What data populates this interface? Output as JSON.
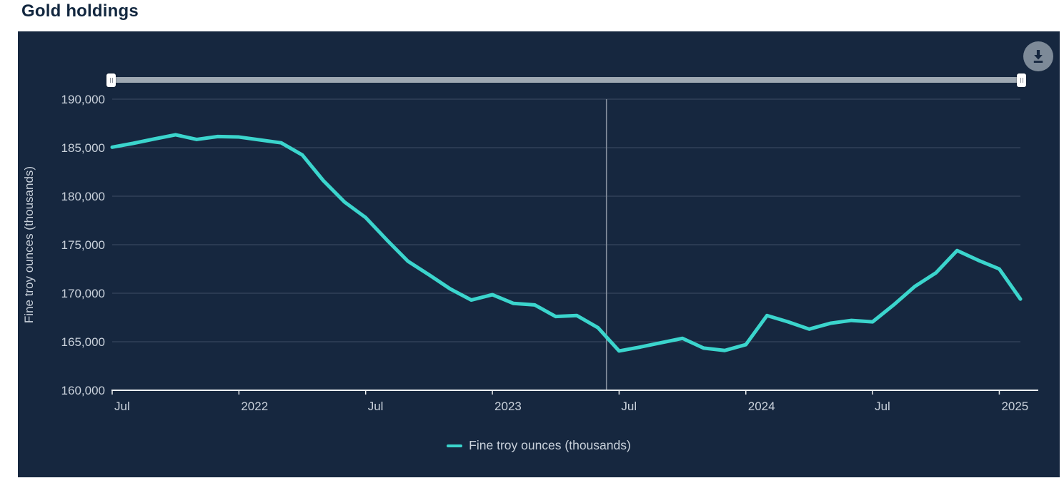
{
  "page": {
    "title": "Gold holdings"
  },
  "toolbar": {
    "download_icon": "download-arrow-with-tray"
  },
  "range_slider": {
    "selected_min_fraction": 0,
    "selected_max_fraction": 1,
    "left_handle_icon": "grip-lines",
    "right_handle_icon": "grip-lines"
  },
  "colors": {
    "panel_background": "#16273F",
    "series_line": "#3BD5CD",
    "gridline": "#3E4E66",
    "axis_text": "#C9D1DB",
    "axis_line": "#EDF0F2",
    "reference_line": "#8892A0",
    "title_text": "#12273F",
    "slider_track": "#9FA9B3",
    "download_button": "#7D8A98"
  },
  "chart_data": {
    "type": "line",
    "title": "Gold holdings",
    "xlabel": "",
    "ylabel": "Fine troy ounces (thousands)",
    "ylim": [
      160000,
      190000
    ],
    "y_ticks": [
      160000,
      165000,
      170000,
      175000,
      180000,
      185000,
      190000
    ],
    "grid": "horizontal",
    "legend_position": "bottom",
    "x": [
      "2021-07",
      "2021-08",
      "2021-09",
      "2021-10",
      "2021-11",
      "2021-12",
      "2022-01",
      "2022-02",
      "2022-03",
      "2022-04",
      "2022-05",
      "2022-06",
      "2022-07",
      "2022-08",
      "2022-09",
      "2022-10",
      "2022-11",
      "2022-12",
      "2023-01",
      "2023-02",
      "2023-03",
      "2023-04",
      "2023-05",
      "2023-06",
      "2023-07",
      "2023-08",
      "2023-09",
      "2023-10",
      "2023-11",
      "2023-12",
      "2024-01",
      "2024-02",
      "2024-03",
      "2024-04",
      "2024-05",
      "2024-06",
      "2024-07",
      "2024-08",
      "2024-09",
      "2024-10",
      "2024-11",
      "2024-12",
      "2025-01",
      "2025-02"
    ],
    "x_tick_indices": [
      0,
      6,
      12,
      18,
      24,
      30,
      36,
      42
    ],
    "x_tick_labels": [
      "Jul",
      "2022",
      "Jul",
      "2023",
      "Jul",
      "2024",
      "Jul",
      "2025"
    ],
    "series": [
      {
        "name": "Fine troy ounces (thousands)",
        "color": "#3BD5CD",
        "values": [
          185050,
          185450,
          185900,
          186330,
          185850,
          186150,
          186100,
          185800,
          185500,
          184250,
          181600,
          179400,
          177800,
          175500,
          173300,
          171900,
          170450,
          169300,
          169850,
          168950,
          168800,
          167600,
          167700,
          166450,
          164050,
          164450,
          164900,
          165350,
          164350,
          164100,
          164700,
          167700,
          167050,
          166300,
          166900,
          167200,
          167050,
          168800,
          170700,
          172100,
          174400,
          173400,
          172500,
          169400
        ]
      }
    ],
    "reference_line": {
      "month_index": 23.4,
      "label": ""
    }
  }
}
